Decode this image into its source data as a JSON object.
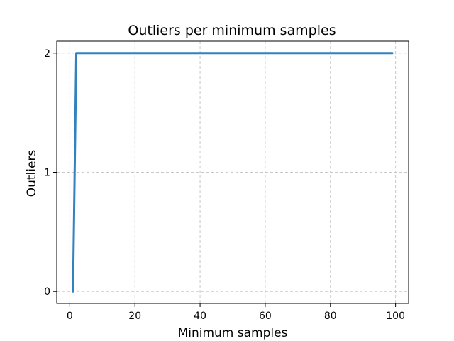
{
  "chart_data": {
    "type": "line",
    "title": "Outliers per minimum samples",
    "xlabel": "Minimum samples",
    "ylabel": "Outliers",
    "xlim": [
      -4.0,
      104.0
    ],
    "ylim": [
      -0.1,
      2.1
    ],
    "xticks": [
      0,
      20,
      40,
      60,
      80,
      100
    ],
    "xtick_labels": [
      "0",
      "20",
      "40",
      "60",
      "80",
      "100"
    ],
    "yticks": [
      0,
      1,
      2
    ],
    "ytick_labels": [
      "0",
      "1",
      "2"
    ],
    "grid": true,
    "series": [
      {
        "color": "#3182bd",
        "x": [
          1,
          2,
          99
        ],
        "y": [
          0,
          2,
          2
        ]
      }
    ]
  }
}
